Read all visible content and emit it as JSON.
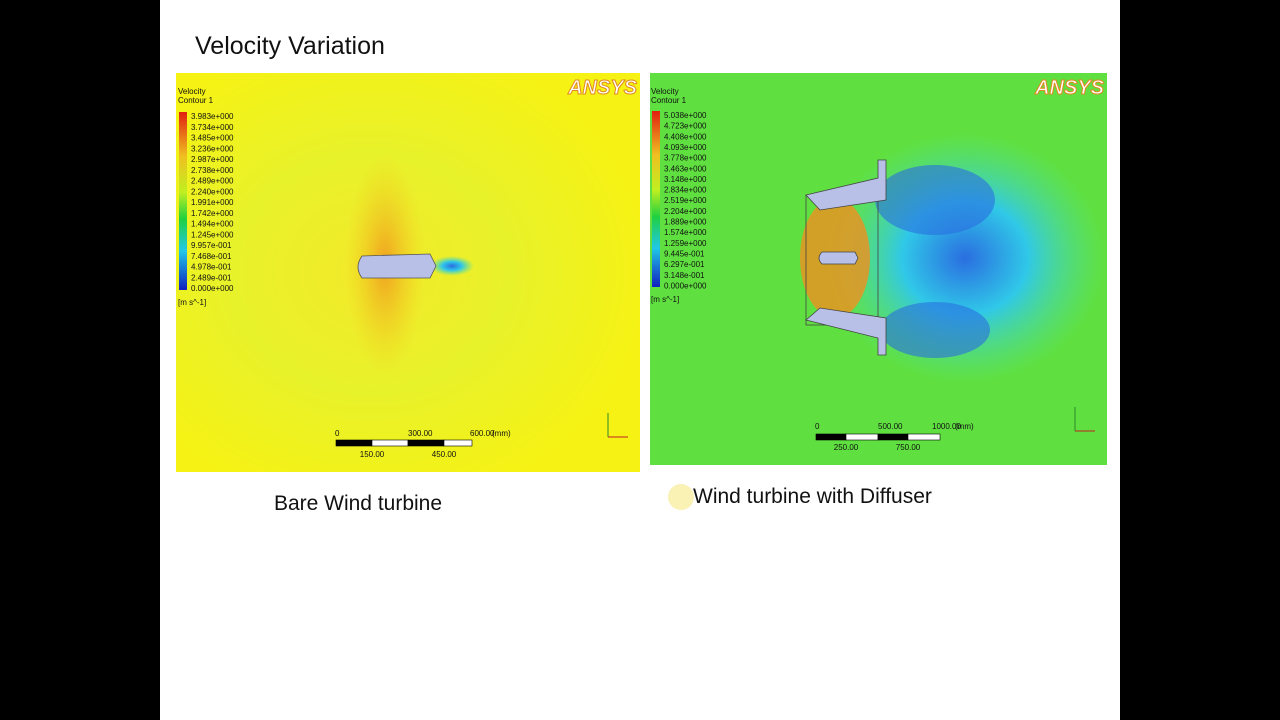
{
  "slide": {
    "title": "Velocity Variation",
    "panels": [
      {
        "legend_title": "Velocity",
        "legend_subtitle": "Contour 1",
        "legend_labels": [
          "3.983e+000",
          "3.734e+000",
          "3.485e+000",
          "3.236e+000",
          "2.987e+000",
          "2.738e+000",
          "2.489e+000",
          "2.240e+000",
          "1.991e+000",
          "1.742e+000",
          "1.494e+000",
          "1.245e+000",
          "9.957e-001",
          "7.468e-001",
          "4.978e-001",
          "2.489e-001",
          "0.000e+000"
        ],
        "unit": "[m s^-1]",
        "brand": "ANSYS",
        "scale_top": [
          "0",
          "300.00",
          "600.00",
          "(mm)"
        ],
        "scale_bottom": [
          "150.00",
          "450.00"
        ],
        "caption": "Bare Wind turbine"
      },
      {
        "legend_title": "Velocity",
        "legend_subtitle": "Contour 1",
        "legend_labels": [
          "5.038e+000",
          "4.723e+000",
          "4.408e+000",
          "4.093e+000",
          "3.778e+000",
          "3.463e+000",
          "3.148e+000",
          "2.834e+000",
          "2.519e+000",
          "2.204e+000",
          "1.889e+000",
          "1.574e+000",
          "1.259e+000",
          "9.445e-001",
          "6.297e-001",
          "3.148e-001",
          "0.000e+000"
        ],
        "unit": "[m s^-1]",
        "brand": "ANSYS",
        "scale_top": [
          "0",
          "500.00",
          "1000.00",
          "(mm)"
        ],
        "scale_bottom": [
          "250.00",
          "750.00"
        ],
        "caption": "Wind turbine with Diffuser"
      }
    ]
  }
}
